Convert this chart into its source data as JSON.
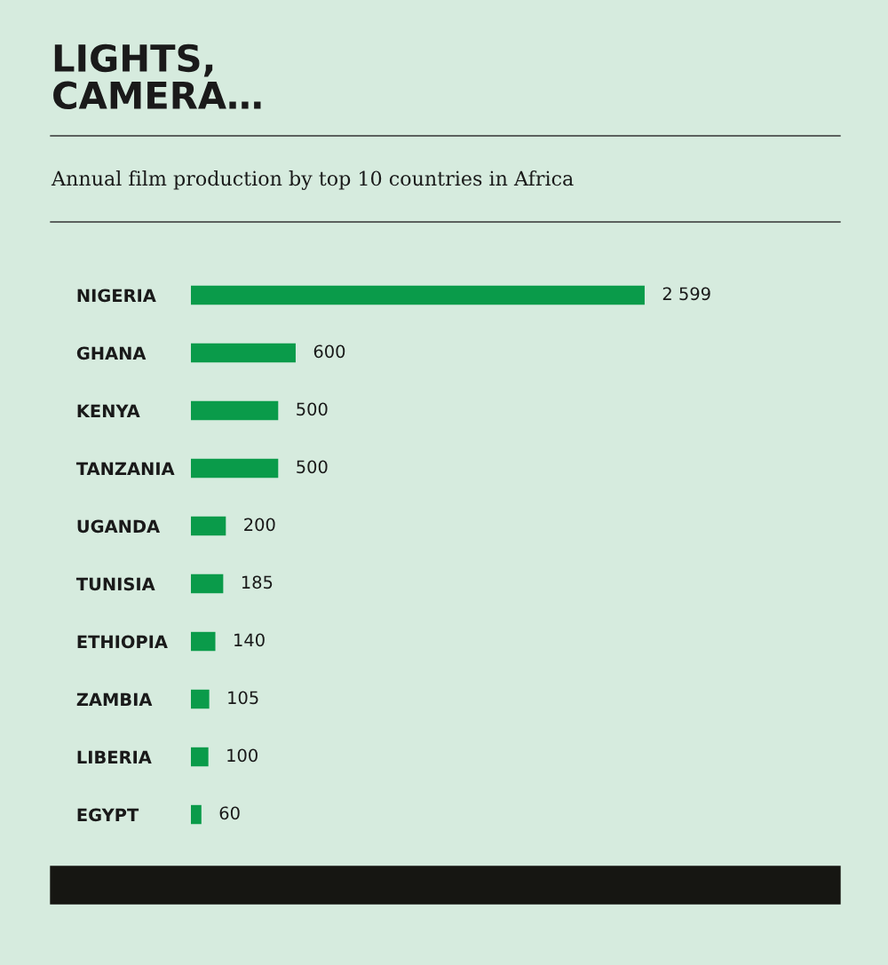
{
  "chart_data": {
    "type": "bar",
    "orientation": "horizontal",
    "title": "LIGHTS,\nCAMERA…",
    "subtitle": "Annual film production by top 10 countries in Africa",
    "categories": [
      "NIGERIA",
      "GHANA",
      "KENYA",
      "TANZANIA",
      "UGANDA",
      "TUNISIA",
      "ETHIOPIA",
      "ZAMBIA",
      "LIBERIA",
      "EGYPT"
    ],
    "values": [
      2599,
      600,
      500,
      500,
      200,
      185,
      140,
      105,
      100,
      60
    ],
    "value_labels": [
      "2 599",
      "600",
      "500",
      "500",
      "200",
      "185",
      "140",
      "105",
      "100",
      "60"
    ],
    "color": "#0a9b4a",
    "grid": false,
    "legend": false
  }
}
